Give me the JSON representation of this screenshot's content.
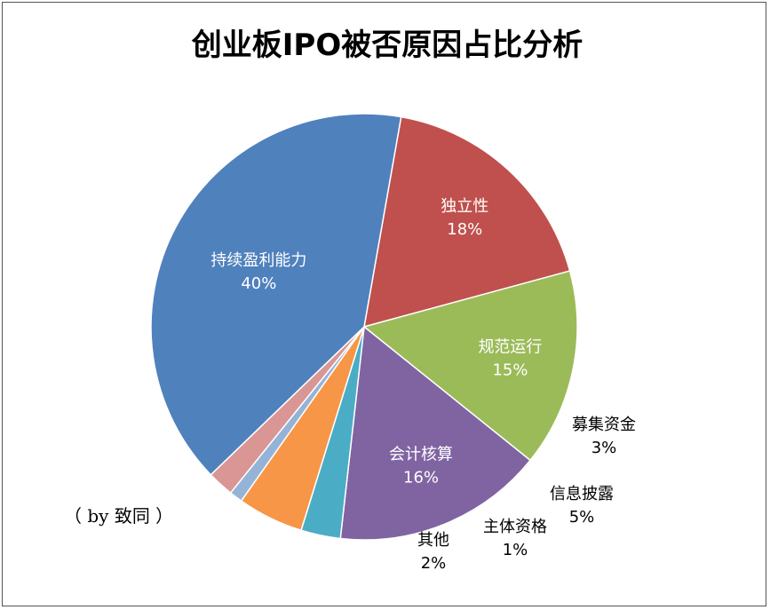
{
  "chart_data": {
    "type": "pie",
    "title": "创业板IPO被否原因占比分析",
    "credit": "（ by 致同 ）",
    "slices": [
      {
        "name": "独立性",
        "value": 18,
        "label": "18%",
        "color": "#C0504D"
      },
      {
        "name": "规范运行",
        "value": 15,
        "label": "15%",
        "color": "#9BBB59"
      },
      {
        "name": "会计核算",
        "value": 16,
        "label": "16%",
        "color": "#8064A2"
      },
      {
        "name": "募集资金",
        "value": 3,
        "label": "3%",
        "color": "#4BACC6"
      },
      {
        "name": "信息披露",
        "value": 5,
        "label": "5%",
        "color": "#F79646"
      },
      {
        "name": "主体资格",
        "value": 1,
        "label": "1%",
        "color": "#95B3D7"
      },
      {
        "name": "其他",
        "value": 2,
        "label": "2%",
        "color": "#D99694"
      },
      {
        "name": "持续盈利能力",
        "value": 40,
        "label": "40%",
        "color": "#4F81BD"
      }
    ]
  }
}
